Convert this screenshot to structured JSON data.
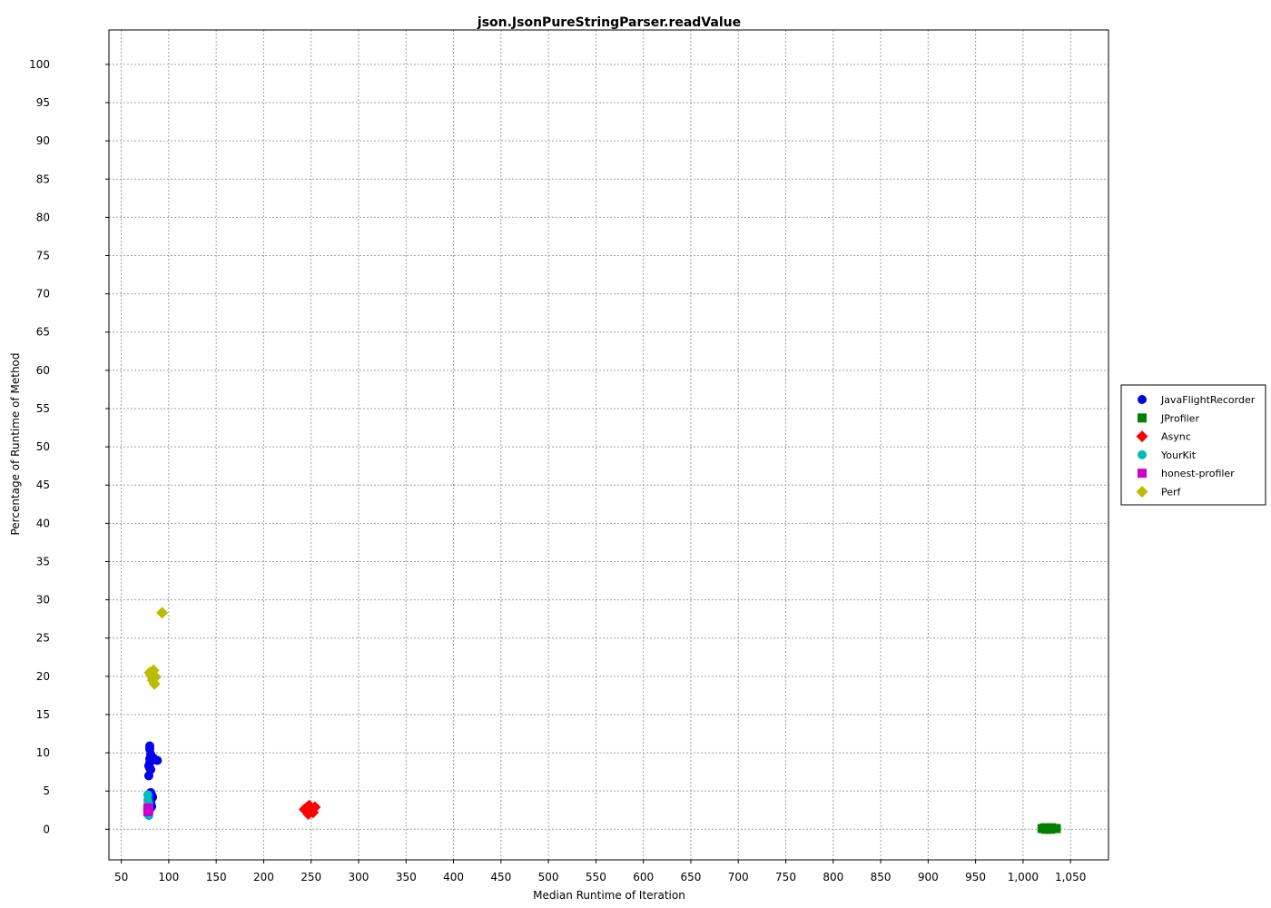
{
  "chart_data": {
    "type": "scatter",
    "title": "json.JsonPureStringParser.readValue",
    "xlabel": "Median Runtime of Iteration",
    "ylabel": "Percentage of Runtime of Method",
    "xlim": [
      37,
      1090
    ],
    "ylim": [
      -4,
      104.5
    ],
    "x_ticks": [
      50,
      100,
      150,
      200,
      250,
      300,
      350,
      400,
      450,
      500,
      550,
      600,
      650,
      700,
      750,
      800,
      850,
      900,
      950,
      1000,
      1050
    ],
    "x_tick_labels": [
      "50",
      "100",
      "150",
      "200",
      "250",
      "300",
      "350",
      "400",
      "450",
      "500",
      "550",
      "600",
      "650",
      "700",
      "750",
      "800",
      "850",
      "900",
      "950",
      "1,000",
      "1,050"
    ],
    "y_ticks": [
      0,
      5,
      10,
      15,
      20,
      25,
      30,
      35,
      40,
      45,
      50,
      55,
      60,
      65,
      70,
      75,
      80,
      85,
      90,
      95,
      100
    ],
    "y_tick_labels": [
      "0",
      "5",
      "10",
      "15",
      "20",
      "25",
      "30",
      "35",
      "40",
      "45",
      "50",
      "55",
      "60",
      "65",
      "70",
      "75",
      "80",
      "85",
      "90",
      "95",
      "100"
    ],
    "grid": true,
    "legend_position": "right",
    "series": [
      {
        "name": "JavaFlightRecorder",
        "color": "#0000ee",
        "marker": "circle",
        "points": [
          [
            80,
            10.9
          ],
          [
            80,
            10.5
          ],
          [
            81,
            9.8
          ],
          [
            80,
            9.2
          ],
          [
            82,
            9.0
          ],
          [
            80,
            8.7
          ],
          [
            79,
            8.3
          ],
          [
            80,
            8.0
          ],
          [
            81,
            7.8
          ],
          [
            79,
            7.0
          ],
          [
            88,
            9.0
          ],
          [
            84,
            9.3
          ],
          [
            81,
            4.8
          ],
          [
            82,
            4.5
          ],
          [
            83,
            4.2
          ],
          [
            81,
            3.5
          ],
          [
            82,
            3.0
          ],
          [
            81,
            2.8
          ]
        ]
      },
      {
        "name": "JProfiler",
        "color": "#008000",
        "marker": "square",
        "points": [
          [
            1020,
            0.1
          ],
          [
            1023,
            0.2
          ],
          [
            1026,
            0.1
          ],
          [
            1029,
            0.0
          ],
          [
            1032,
            0.1
          ],
          [
            1035,
            0.1
          ],
          [
            1024,
            0.0
          ],
          [
            1030,
            0.2
          ]
        ]
      },
      {
        "name": "Async",
        "color": "#ff0000",
        "marker": "diamond",
        "points": [
          [
            243,
            2.6
          ],
          [
            246,
            2.3
          ],
          [
            248,
            3.1
          ],
          [
            250,
            2.5
          ],
          [
            252,
            2.2
          ],
          [
            254,
            2.9
          ],
          [
            247,
            2.0
          ],
          [
            245,
            2.8
          ],
          [
            249,
            2.7
          ]
        ]
      },
      {
        "name": "YourKit",
        "color": "#00bbbb",
        "marker": "circle",
        "points": [
          [
            78,
            4.5
          ],
          [
            78,
            3.8
          ],
          [
            79,
            3.4
          ],
          [
            78,
            3.0
          ],
          [
            79,
            2.5
          ],
          [
            78,
            2.0
          ],
          [
            79,
            1.8
          ]
        ]
      },
      {
        "name": "honest-profiler",
        "color": "#cc00cc",
        "marker": "square",
        "points": [
          [
            78,
            2.8
          ],
          [
            79,
            2.5
          ],
          [
            78,
            2.3
          ]
        ]
      },
      {
        "name": "Perf",
        "color": "#bbbb00",
        "marker": "diamond",
        "points": [
          [
            93,
            28.3
          ],
          [
            84,
            20.8
          ],
          [
            80,
            20.5
          ],
          [
            82,
            20.0
          ],
          [
            86,
            19.9
          ],
          [
            83,
            19.5
          ],
          [
            85,
            19.0
          ],
          [
            81,
            20.3
          ]
        ]
      }
    ]
  }
}
